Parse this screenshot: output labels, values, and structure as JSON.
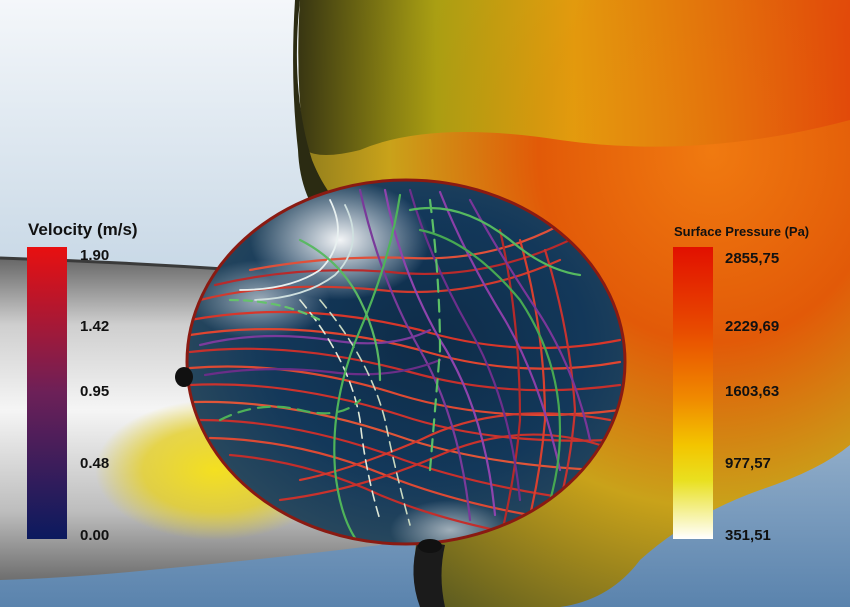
{
  "velocity_legend": {
    "title": "Velocity (m/s)",
    "ticks": [
      "1.90",
      "1.42",
      "0.95",
      "0.48",
      "0.00"
    ],
    "colors": [
      "#e81010",
      "#6c2058",
      "#0b1a5e"
    ]
  },
  "pressure_legend": {
    "title": "Surface Pressure (Pa)",
    "ticks": [
      "2855,75",
      "2229,69",
      "1603,63",
      "977,57",
      "351,51"
    ],
    "colors": [
      "#e21000",
      "#f08a00",
      "#ffffff"
    ]
  }
}
